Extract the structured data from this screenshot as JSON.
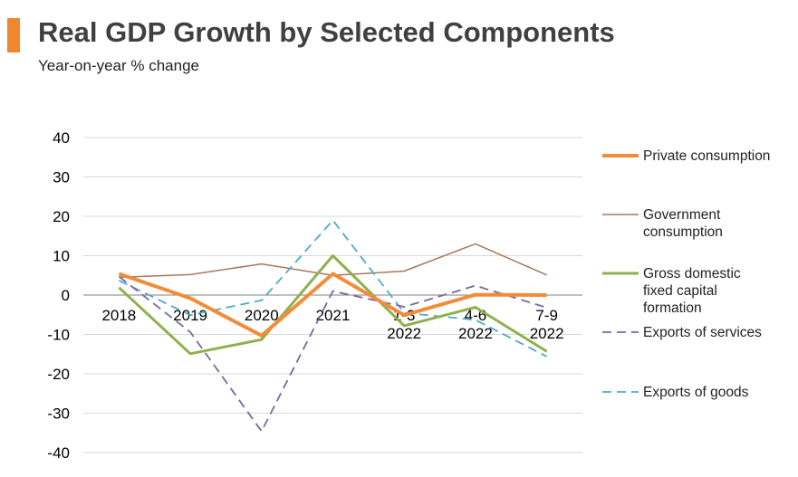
{
  "header": {
    "title": "Real GDP Growth by Selected Components",
    "subtitle": "Year-on-year % change"
  },
  "chart_data": {
    "type": "line",
    "categories": [
      [
        "2018"
      ],
      [
        "2019"
      ],
      [
        "2020"
      ],
      [
        "2021"
      ],
      [
        "1-3",
        "2022"
      ],
      [
        "4-6",
        "2022"
      ],
      [
        "7-9",
        "2022"
      ]
    ],
    "ylim": [
      -40,
      40
    ],
    "yticks": [
      "40",
      "30",
      "20",
      "10",
      "0",
      "-10",
      "-20",
      "-30",
      "-40"
    ],
    "grid": true,
    "legend_position": "right",
    "series": [
      {
        "name": "Private consumption",
        "color": "#f28c3a",
        "style": "solid-thick",
        "values": [
          5.4,
          -0.8,
          -10.3,
          5.4,
          -5.1,
          0.1,
          0.0
        ]
      },
      {
        "name": "Government consumption",
        "color": "#a9785c",
        "style": "solid-thin",
        "values": [
          4.5,
          5.2,
          7.9,
          5.0,
          6.1,
          13.0,
          5.1
        ]
      },
      {
        "name": "Gross domestic fixed capital formation",
        "color": "#8fb14c",
        "style": "solid",
        "values": [
          1.9,
          -14.9,
          -11.3,
          10.0,
          -7.8,
          -3.1,
          -14.3
        ]
      },
      {
        "name": "Exports of services",
        "color": "#7b67a2",
        "style": "dashed",
        "values": [
          4.7,
          -9.4,
          -34.6,
          1.0,
          -3.0,
          2.4,
          -3.2
        ]
      },
      {
        "name": "Exports of goods",
        "color": "#4bacc6",
        "style": "dashed",
        "values": [
          3.7,
          -5.1,
          -1.3,
          19.0,
          -4.5,
          -6.3,
          -15.6
        ]
      }
    ],
    "legend_labels": [
      [
        "Private consumption"
      ],
      [
        "Government",
        "consumption"
      ],
      [
        "Gross domestic",
        "fixed capital",
        "formation"
      ],
      [
        "Exports of services"
      ],
      [
        "Exports of goods"
      ]
    ]
  }
}
